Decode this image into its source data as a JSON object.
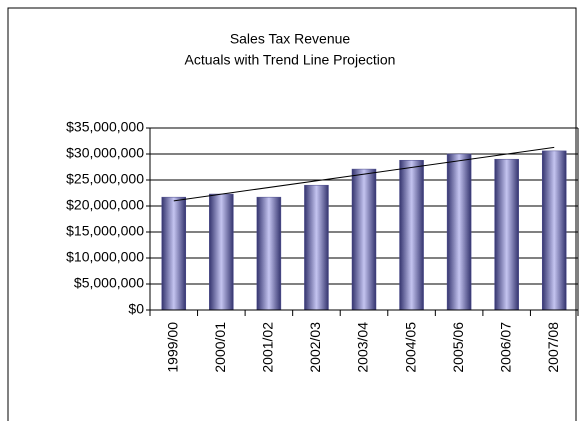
{
  "chart_data": {
    "type": "bar",
    "title": "Sales Tax Revenue",
    "subtitle": "Actuals with Trend Line Projection",
    "categories": [
      "1999/00",
      "2000/01",
      "2001/02",
      "2002/03",
      "2003/04",
      "2004/05",
      "2005/06",
      "2006/07",
      "2007/08"
    ],
    "values": [
      21700000,
      22300000,
      21700000,
      24000000,
      27100000,
      28800000,
      30000000,
      29000000,
      30600000
    ],
    "color": "#4a4a8c",
    "trendline": true,
    "grid": true,
    "ylim": [
      0,
      35000000
    ],
    "yticks": [
      {
        "value": 0,
        "label": "$0"
      },
      {
        "value": 5000000,
        "label": "$5,000,000"
      },
      {
        "value": 10000000,
        "label": "$10,000,000"
      },
      {
        "value": 15000000,
        "label": "$15,000,000"
      },
      {
        "value": 20000000,
        "label": "$20,000,000"
      },
      {
        "value": 25000000,
        "label": "$25,000,000"
      },
      {
        "value": 30000000,
        "label": "$30,000,000"
      },
      {
        "value": 35000000,
        "label": "$35,000,000"
      }
    ]
  }
}
